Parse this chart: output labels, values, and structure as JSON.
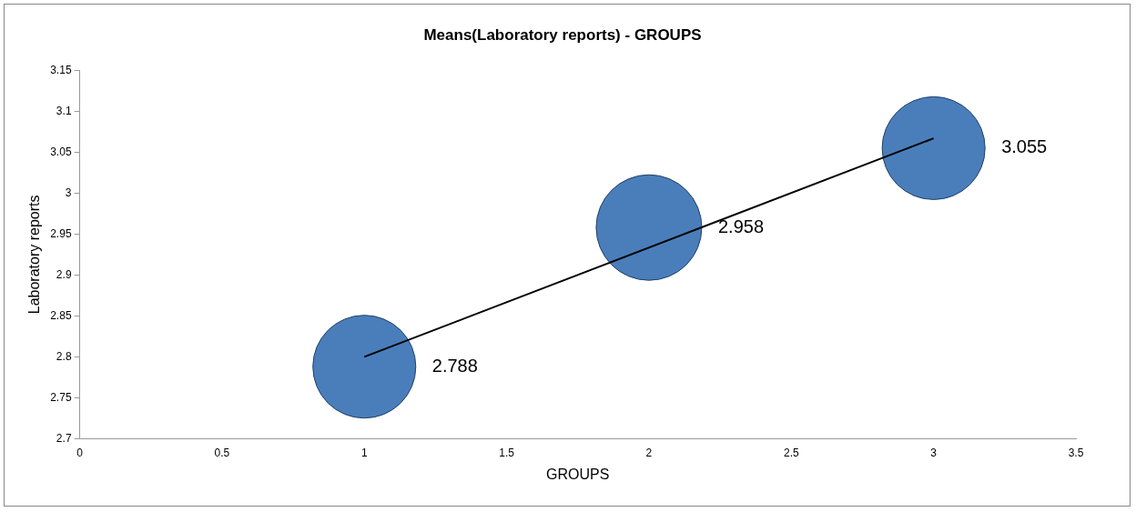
{
  "chart_data": {
    "type": "bubble",
    "title": "Means(Laboratory reports) - GROUPS",
    "xlabel": "GROUPS",
    "ylabel": "Laboratory reports",
    "x": [
      1,
      2,
      3
    ],
    "series": [
      {
        "type": "bubble",
        "color": "#4a7ebb",
        "values": [
          2.788,
          2.958,
          3.055
        ],
        "sizes": [
          0.95,
          1,
          0.95
        ],
        "value_labels": [
          "2.788",
          "2.958",
          "3.055"
        ]
      },
      {
        "type": "line",
        "color": "#000000",
        "x": [
          1,
          3
        ],
        "values": [
          2.8,
          3.067
        ]
      }
    ],
    "xlim": [
      0,
      3.5
    ],
    "xticks": [
      0,
      0.5,
      1,
      1.5,
      2,
      2.5,
      3,
      3.5
    ],
    "ylim": [
      2.7,
      3.15
    ],
    "yticks": [
      2.7,
      2.75,
      2.8,
      2.85,
      2.9,
      2.95,
      3,
      3.05,
      3.1,
      3.15
    ],
    "grid": false
  }
}
